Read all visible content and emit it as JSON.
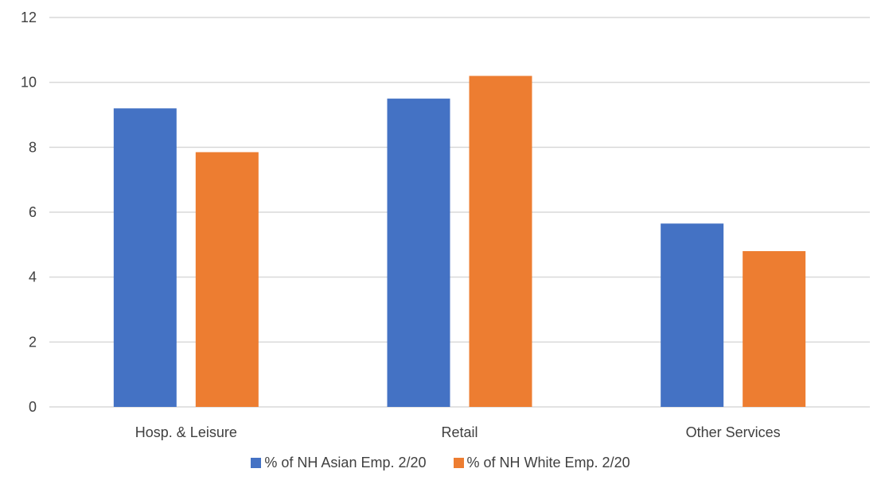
{
  "chart_data": {
    "type": "bar",
    "categories": [
      "Hosp. & Leisure",
      "Retail",
      "Other Services"
    ],
    "series": [
      {
        "name": "% of NH Asian Emp. 2/20",
        "values": [
          9.2,
          9.5,
          5.65
        ],
        "color": "#4472C4"
      },
      {
        "name": "% of NH White Emp. 2/20",
        "values": [
          7.85,
          10.2,
          4.8
        ],
        "color": "#ED7D31"
      }
    ],
    "title": "",
    "xlabel": "",
    "ylabel": "",
    "ylim": [
      0,
      12
    ],
    "yticks": [
      "0",
      "2",
      "4",
      "6",
      "8",
      "10",
      "12"
    ],
    "grid": true,
    "legend_position": "bottom"
  }
}
